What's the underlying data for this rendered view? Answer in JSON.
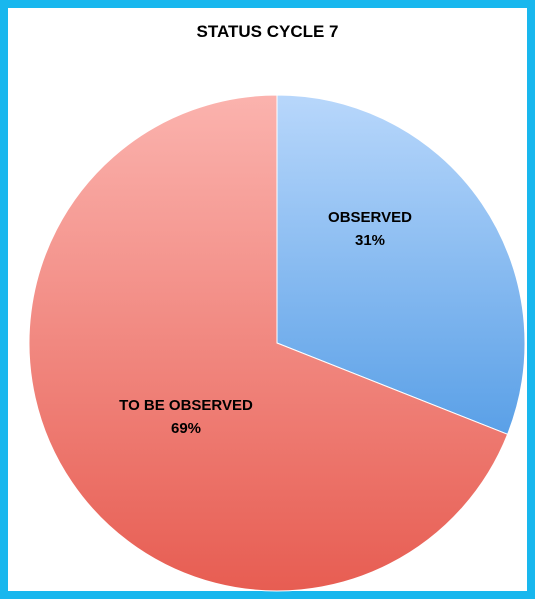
{
  "chart_data": {
    "type": "pie",
    "title": "STATUS CYCLE 7",
    "slices": [
      {
        "name": "OBSERVED",
        "value": 31,
        "value_label": "31%",
        "color_light": "#b8d7fb",
        "color_dark": "#5aa0e7"
      },
      {
        "name": "TO BE OBSERVED",
        "value": 69,
        "value_label": "69%",
        "color_light": "#fbb3ae",
        "color_dark": "#e75d52"
      }
    ]
  },
  "frame_color": "#18b7ee"
}
